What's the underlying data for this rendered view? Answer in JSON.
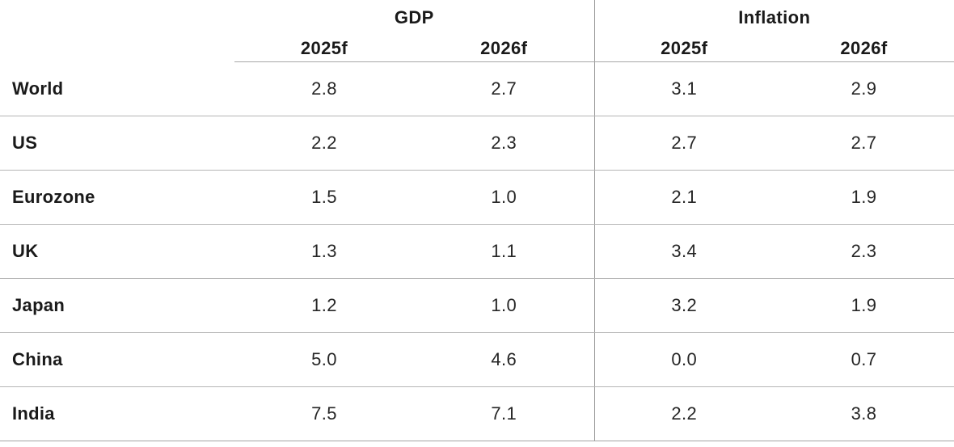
{
  "table": {
    "groups": [
      {
        "label": "GDP"
      },
      {
        "label": "Inflation"
      }
    ],
    "subheaders": [
      "2025f",
      "2026f",
      "2025f",
      "2026f"
    ],
    "rows": [
      {
        "region": "World",
        "values": [
          "2.8",
          "2.7",
          "3.1",
          "2.9"
        ]
      },
      {
        "region": "US",
        "values": [
          "2.2",
          "2.3",
          "2.7",
          "2.7"
        ]
      },
      {
        "region": "Eurozone",
        "values": [
          "1.5",
          "1.0",
          "2.1",
          "1.9"
        ]
      },
      {
        "region": "UK",
        "values": [
          "1.3",
          "1.1",
          "3.4",
          "2.3"
        ]
      },
      {
        "region": "Japan",
        "values": [
          "1.2",
          "1.0",
          "3.2",
          "1.9"
        ]
      },
      {
        "region": "China",
        "values": [
          "5.0",
          "4.6",
          "0.0",
          "0.7"
        ]
      },
      {
        "region": "India",
        "values": [
          "7.5",
          "7.1",
          "2.2",
          "3.8"
        ]
      }
    ]
  },
  "colors": {
    "text": "#1a1a1a",
    "row_line": "#b5b5b5",
    "header_underline": "#a8a8a8",
    "section_divider": "#999999",
    "background": "#ffffff"
  },
  "chart_data": {
    "type": "table",
    "title": "",
    "column_groups": [
      "GDP",
      "Inflation"
    ],
    "columns": [
      "GDP 2025f",
      "GDP 2026f",
      "Inflation 2025f",
      "Inflation 2026f"
    ],
    "categories": [
      "World",
      "US",
      "Eurozone",
      "UK",
      "Japan",
      "China",
      "India"
    ],
    "series": [
      {
        "name": "GDP 2025f",
        "values": [
          2.8,
          2.2,
          1.5,
          1.3,
          1.2,
          5.0,
          7.5
        ]
      },
      {
        "name": "GDP 2026f",
        "values": [
          2.7,
          2.3,
          1.0,
          1.1,
          1.0,
          4.6,
          7.1
        ]
      },
      {
        "name": "Inflation 2025f",
        "values": [
          3.1,
          2.7,
          2.1,
          3.4,
          3.2,
          0.0,
          2.2
        ]
      },
      {
        "name": "Inflation 2026f",
        "values": [
          2.9,
          2.7,
          1.9,
          2.3,
          1.9,
          0.7,
          3.8
        ]
      }
    ],
    "layout": {
      "group_header_centered_over_pairs": true,
      "vertical_divider_between_groups": true,
      "row_separators": true
    }
  }
}
